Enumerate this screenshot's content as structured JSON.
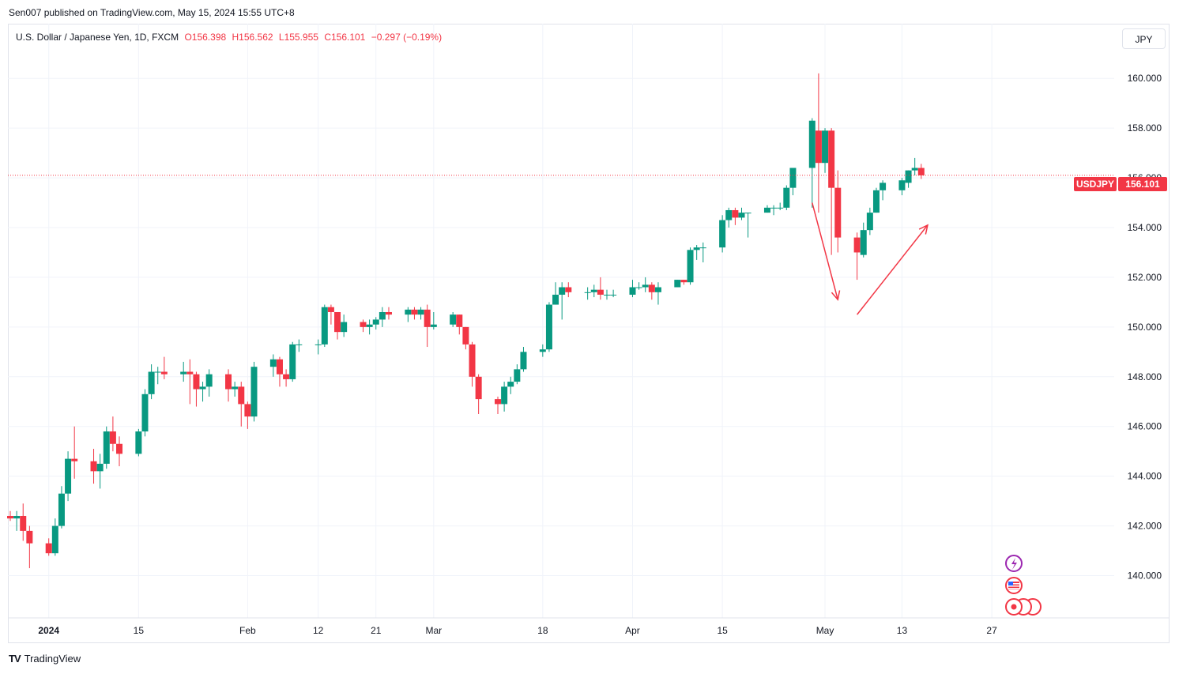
{
  "header": {
    "publisher": "Sen007 published on TradingView.com, May 15, 2024 15:55 UTC+8"
  },
  "legend": {
    "symbol": "U.S. Dollar / Japanese Yen, 1D, FXCM",
    "open": "O156.398",
    "high": "H156.562",
    "low": "L155.955",
    "close": "C156.101",
    "change": "−0.297 (−0.19%)"
  },
  "currency_button": "JPY",
  "price_tag": {
    "symbol": "USDJPY",
    "value": "156.101"
  },
  "footer": {
    "brand": "TradingView"
  },
  "colors": {
    "up": "#089981",
    "down": "#f23645",
    "grid": "#f0f3fa",
    "annotation": "#f23645"
  },
  "chart_data": {
    "type": "candlestick",
    "title": "U.S. Dollar / Japanese Yen, 1D, FXCM",
    "ylim": [
      138.3,
      162.2
    ],
    "y_ticks": [
      "140.000",
      "142.000",
      "144.000",
      "146.000",
      "148.000",
      "150.000",
      "152.000",
      "154.000",
      "156.000",
      "158.000",
      "160.000"
    ],
    "x_ticks": [
      {
        "label": "2024",
        "date": "2024-01-01",
        "bold": true
      },
      {
        "label": "15",
        "date": "2024-01-15"
      },
      {
        "label": "Feb",
        "date": "2024-02-01"
      },
      {
        "label": "12",
        "date": "2024-02-12"
      },
      {
        "label": "21",
        "date": "2024-02-21"
      },
      {
        "label": "Mar",
        "date": "2024-03-01"
      },
      {
        "label": "18",
        "date": "2024-03-18"
      },
      {
        "label": "Apr",
        "date": "2024-04-01"
      },
      {
        "label": "15",
        "date": "2024-04-15"
      },
      {
        "label": "May",
        "date": "2024-05-01"
      },
      {
        "label": "13",
        "date": "2024-05-13"
      },
      {
        "label": "27",
        "date": "2024-05-27"
      }
    ],
    "x_range": [
      "2023-12-26",
      "2024-06-12"
    ],
    "last_price": 156.101,
    "candles": [
      {
        "d": "2023-12-26",
        "o": 142.4,
        "h": 142.6,
        "l": 142.2,
        "c": 142.3
      },
      {
        "d": "2023-12-27",
        "o": 142.3,
        "h": 142.6,
        "l": 141.8,
        "c": 142.4
      },
      {
        "d": "2023-12-28",
        "o": 142.4,
        "h": 142.9,
        "l": 141.4,
        "c": 141.8
      },
      {
        "d": "2023-12-29",
        "o": 141.8,
        "h": 142.0,
        "l": 140.3,
        "c": 141.3
      },
      {
        "d": "2024-01-01",
        "o": 141.3,
        "h": 141.5,
        "l": 140.8,
        "c": 140.9
      },
      {
        "d": "2024-01-02",
        "o": 140.9,
        "h": 142.3,
        "l": 140.8,
        "c": 142.0
      },
      {
        "d": "2024-01-03",
        "o": 142.0,
        "h": 143.6,
        "l": 141.9,
        "c": 143.3
      },
      {
        "d": "2024-01-04",
        "o": 143.3,
        "h": 145.0,
        "l": 143.0,
        "c": 144.7
      },
      {
        "d": "2024-01-05",
        "o": 144.7,
        "h": 146.0,
        "l": 143.9,
        "c": 144.6
      },
      {
        "d": "2024-01-08",
        "o": 144.6,
        "h": 145.1,
        "l": 143.7,
        "c": 144.2
      },
      {
        "d": "2024-01-09",
        "o": 144.2,
        "h": 144.9,
        "l": 143.5,
        "c": 144.5
      },
      {
        "d": "2024-01-10",
        "o": 144.5,
        "h": 146.0,
        "l": 144.3,
        "c": 145.8
      },
      {
        "d": "2024-01-11",
        "o": 145.8,
        "h": 146.4,
        "l": 145.0,
        "c": 145.3
      },
      {
        "d": "2024-01-12",
        "o": 145.3,
        "h": 145.6,
        "l": 144.4,
        "c": 144.9
      },
      {
        "d": "2024-01-15",
        "o": 144.9,
        "h": 145.9,
        "l": 144.8,
        "c": 145.8
      },
      {
        "d": "2024-01-16",
        "o": 145.8,
        "h": 147.5,
        "l": 145.6,
        "c": 147.3
      },
      {
        "d": "2024-01-17",
        "o": 147.3,
        "h": 148.5,
        "l": 147.1,
        "c": 148.2
      },
      {
        "d": "2024-01-18",
        "o": 148.2,
        "h": 148.4,
        "l": 147.7,
        "c": 148.2
      },
      {
        "d": "2024-01-19",
        "o": 148.2,
        "h": 148.8,
        "l": 147.9,
        "c": 148.1
      },
      {
        "d": "2024-01-22",
        "o": 148.1,
        "h": 148.6,
        "l": 147.8,
        "c": 148.2
      },
      {
        "d": "2024-01-23",
        "o": 148.2,
        "h": 148.7,
        "l": 146.9,
        "c": 148.1
      },
      {
        "d": "2024-01-24",
        "o": 148.1,
        "h": 148.2,
        "l": 146.8,
        "c": 147.5
      },
      {
        "d": "2024-01-25",
        "o": 147.5,
        "h": 147.8,
        "l": 147.0,
        "c": 147.6
      },
      {
        "d": "2024-01-26",
        "o": 147.6,
        "h": 148.3,
        "l": 147.2,
        "c": 148.1
      },
      {
        "d": "2024-01-29",
        "o": 148.1,
        "h": 148.3,
        "l": 147.0,
        "c": 147.5
      },
      {
        "d": "2024-01-30",
        "o": 147.5,
        "h": 147.8,
        "l": 147.2,
        "c": 147.6
      },
      {
        "d": "2024-01-31",
        "o": 147.6,
        "h": 147.8,
        "l": 146.0,
        "c": 146.9
      },
      {
        "d": "2024-02-01",
        "o": 146.9,
        "h": 147.0,
        "l": 145.9,
        "c": 146.4
      },
      {
        "d": "2024-02-02",
        "o": 146.4,
        "h": 148.6,
        "l": 146.2,
        "c": 148.4
      },
      {
        "d": "2024-02-05",
        "o": 148.4,
        "h": 148.9,
        "l": 148.0,
        "c": 148.7
      },
      {
        "d": "2024-02-06",
        "o": 148.7,
        "h": 148.8,
        "l": 147.6,
        "c": 148.1
      },
      {
        "d": "2024-02-07",
        "o": 148.1,
        "h": 148.3,
        "l": 147.6,
        "c": 147.9
      },
      {
        "d": "2024-02-08",
        "o": 147.9,
        "h": 149.4,
        "l": 147.8,
        "c": 149.3
      },
      {
        "d": "2024-02-09",
        "o": 149.3,
        "h": 149.5,
        "l": 149.0,
        "c": 149.3
      },
      {
        "d": "2024-02-12",
        "o": 149.3,
        "h": 149.5,
        "l": 148.9,
        "c": 149.3
      },
      {
        "d": "2024-02-13",
        "o": 149.3,
        "h": 150.9,
        "l": 149.2,
        "c": 150.8
      },
      {
        "d": "2024-02-14",
        "o": 150.8,
        "h": 150.9,
        "l": 150.1,
        "c": 150.6
      },
      {
        "d": "2024-02-15",
        "o": 150.6,
        "h": 150.6,
        "l": 149.5,
        "c": 149.8
      },
      {
        "d": "2024-02-16",
        "o": 149.8,
        "h": 150.5,
        "l": 149.6,
        "c": 150.2
      },
      {
        "d": "2024-02-19",
        "o": 150.2,
        "h": 150.3,
        "l": 149.8,
        "c": 150.0
      },
      {
        "d": "2024-02-20",
        "o": 150.0,
        "h": 150.3,
        "l": 149.7,
        "c": 150.1
      },
      {
        "d": "2024-02-21",
        "o": 150.1,
        "h": 150.4,
        "l": 149.9,
        "c": 150.3
      },
      {
        "d": "2024-02-22",
        "o": 150.3,
        "h": 150.8,
        "l": 150.0,
        "c": 150.6
      },
      {
        "d": "2024-02-23",
        "o": 150.6,
        "h": 150.8,
        "l": 150.3,
        "c": 150.5
      },
      {
        "d": "2024-02-26",
        "o": 150.5,
        "h": 150.8,
        "l": 150.2,
        "c": 150.7
      },
      {
        "d": "2024-02-27",
        "o": 150.7,
        "h": 150.8,
        "l": 150.3,
        "c": 150.5
      },
      {
        "d": "2024-02-28",
        "o": 150.5,
        "h": 150.8,
        "l": 150.3,
        "c": 150.7
      },
      {
        "d": "2024-02-29",
        "o": 150.7,
        "h": 150.9,
        "l": 149.2,
        "c": 150.0
      },
      {
        "d": "2024-03-01",
        "o": 150.0,
        "h": 150.6,
        "l": 149.9,
        "c": 150.1
      },
      {
        "d": "2024-03-04",
        "o": 150.1,
        "h": 150.6,
        "l": 150.0,
        "c": 150.5
      },
      {
        "d": "2024-03-05",
        "o": 150.5,
        "h": 150.5,
        "l": 149.7,
        "c": 150.0
      },
      {
        "d": "2024-03-06",
        "o": 150.0,
        "h": 150.0,
        "l": 149.1,
        "c": 149.3
      },
      {
        "d": "2024-03-07",
        "o": 149.3,
        "h": 149.4,
        "l": 147.6,
        "c": 148.0
      },
      {
        "d": "2024-03-08",
        "o": 148.0,
        "h": 148.1,
        "l": 146.5,
        "c": 147.1
      },
      {
        "d": "2024-03-11",
        "o": 147.1,
        "h": 147.2,
        "l": 146.5,
        "c": 146.9
      },
      {
        "d": "2024-03-12",
        "o": 146.9,
        "h": 147.8,
        "l": 146.6,
        "c": 147.6
      },
      {
        "d": "2024-03-13",
        "o": 147.6,
        "h": 148.0,
        "l": 147.3,
        "c": 147.8
      },
      {
        "d": "2024-03-14",
        "o": 147.8,
        "h": 148.5,
        "l": 147.7,
        "c": 148.3
      },
      {
        "d": "2024-03-15",
        "o": 148.3,
        "h": 149.2,
        "l": 148.2,
        "c": 149.0
      },
      {
        "d": "2024-03-18",
        "o": 149.0,
        "h": 149.3,
        "l": 148.8,
        "c": 149.1
      },
      {
        "d": "2024-03-19",
        "o": 149.1,
        "h": 151.0,
        "l": 149.0,
        "c": 150.9
      },
      {
        "d": "2024-03-20",
        "o": 150.9,
        "h": 151.8,
        "l": 150.9,
        "c": 151.3
      },
      {
        "d": "2024-03-21",
        "o": 151.3,
        "h": 151.8,
        "l": 150.3,
        "c": 151.6
      },
      {
        "d": "2024-03-22",
        "o": 151.6,
        "h": 151.8,
        "l": 151.2,
        "c": 151.4
      },
      {
        "d": "2024-03-25",
        "o": 151.4,
        "h": 151.6,
        "l": 151.1,
        "c": 151.4
      },
      {
        "d": "2024-03-26",
        "o": 151.4,
        "h": 151.7,
        "l": 151.2,
        "c": 151.5
      },
      {
        "d": "2024-03-27",
        "o": 151.5,
        "h": 152.0,
        "l": 151.1,
        "c": 151.3
      },
      {
        "d": "2024-03-28",
        "o": 151.3,
        "h": 151.5,
        "l": 151.1,
        "c": 151.3
      },
      {
        "d": "2024-03-29",
        "o": 151.3,
        "h": 151.5,
        "l": 151.2,
        "c": 151.3
      },
      {
        "d": "2024-04-01",
        "o": 151.3,
        "h": 151.9,
        "l": 151.2,
        "c": 151.6
      },
      {
        "d": "2024-04-02",
        "o": 151.6,
        "h": 151.8,
        "l": 151.5,
        "c": 151.6
      },
      {
        "d": "2024-04-03",
        "o": 151.6,
        "h": 152.0,
        "l": 151.4,
        "c": 151.7
      },
      {
        "d": "2024-04-04",
        "o": 151.7,
        "h": 151.8,
        "l": 151.1,
        "c": 151.4
      },
      {
        "d": "2024-04-05",
        "o": 151.4,
        "h": 151.8,
        "l": 150.9,
        "c": 151.6
      },
      {
        "d": "2024-04-08",
        "o": 151.6,
        "h": 151.9,
        "l": 151.6,
        "c": 151.9
      },
      {
        "d": "2024-04-09",
        "o": 151.9,
        "h": 151.9,
        "l": 151.7,
        "c": 151.8
      },
      {
        "d": "2024-04-10",
        "o": 151.8,
        "h": 153.2,
        "l": 151.7,
        "c": 153.1
      },
      {
        "d": "2024-04-11",
        "o": 153.1,
        "h": 153.3,
        "l": 152.7,
        "c": 153.2
      },
      {
        "d": "2024-04-12",
        "o": 153.2,
        "h": 153.4,
        "l": 152.6,
        "c": 153.2
      },
      {
        "d": "2024-04-15",
        "o": 153.2,
        "h": 154.5,
        "l": 153.0,
        "c": 154.3
      },
      {
        "d": "2024-04-16",
        "o": 154.3,
        "h": 154.8,
        "l": 154.0,
        "c": 154.7
      },
      {
        "d": "2024-04-17",
        "o": 154.7,
        "h": 154.8,
        "l": 154.1,
        "c": 154.4
      },
      {
        "d": "2024-04-18",
        "o": 154.4,
        "h": 154.8,
        "l": 154.3,
        "c": 154.6
      },
      {
        "d": "2024-04-19",
        "o": 154.6,
        "h": 154.6,
        "l": 153.6,
        "c": 154.6
      },
      {
        "d": "2024-04-22",
        "o": 154.6,
        "h": 154.9,
        "l": 154.6,
        "c": 154.8
      },
      {
        "d": "2024-04-23",
        "o": 154.8,
        "h": 154.9,
        "l": 154.5,
        "c": 154.8
      },
      {
        "d": "2024-04-24",
        "o": 154.8,
        "h": 155.0,
        "l": 154.7,
        "c": 154.8
      },
      {
        "d": "2024-04-25",
        "o": 154.8,
        "h": 155.7,
        "l": 154.7,
        "c": 155.6
      },
      {
        "d": "2024-04-26",
        "o": 155.6,
        "h": 156.4,
        "l": 155.3,
        "c": 156.4
      },
      {
        "d": "2024-04-29",
        "o": 156.4,
        "h": 158.4,
        "l": 154.8,
        "c": 158.3
      },
      {
        "d": "2024-04-30",
        "o": 157.9,
        "h": 160.2,
        "l": 154.6,
        "c": 156.6
      },
      {
        "d": "2024-05-01",
        "o": 156.6,
        "h": 158.0,
        "l": 156.2,
        "c": 157.9
      },
      {
        "d": "2024-05-02",
        "o": 157.9,
        "h": 158.0,
        "l": 152.9,
        "c": 155.6
      },
      {
        "d": "2024-05-03",
        "o": 155.6,
        "h": 156.3,
        "l": 153.0,
        "c": 153.6
      },
      {
        "d": "2024-05-06",
        "o": 153.6,
        "h": 153.8,
        "l": 151.9,
        "c": 153.0
      },
      {
        "d": "2024-05-07",
        "o": 152.9,
        "h": 154.2,
        "l": 152.8,
        "c": 153.9
      },
      {
        "d": "2024-05-08",
        "o": 153.9,
        "h": 154.8,
        "l": 153.7,
        "c": 154.6
      },
      {
        "d": "2024-05-09",
        "o": 154.6,
        "h": 155.6,
        "l": 154.6,
        "c": 155.5
      },
      {
        "d": "2024-05-10",
        "o": 155.5,
        "h": 155.9,
        "l": 155.1,
        "c": 155.8
      },
      {
        "d": "2024-05-13",
        "o": 155.5,
        "h": 156.0,
        "l": 155.3,
        "c": 155.9
      },
      {
        "d": "2024-05-14",
        "o": 155.8,
        "h": 156.3,
        "l": 155.6,
        "c": 156.3
      },
      {
        "d": "2024-05-15",
        "o": 156.3,
        "h": 156.8,
        "l": 156.1,
        "c": 156.4
      },
      {
        "d": "2024-05-16",
        "o": 156.398,
        "h": 156.562,
        "l": 155.955,
        "c": 156.101
      }
    ],
    "annotations": [
      {
        "type": "arrow",
        "from": {
          "date": "2024-04-29",
          "price": 155.0
        },
        "to": {
          "date": "2024-05-03",
          "price": 151.1
        }
      },
      {
        "type": "arrow",
        "from": {
          "date": "2024-05-06",
          "price": 150.5
        },
        "to": {
          "date": "2024-05-17",
          "price": 154.1
        }
      }
    ]
  }
}
